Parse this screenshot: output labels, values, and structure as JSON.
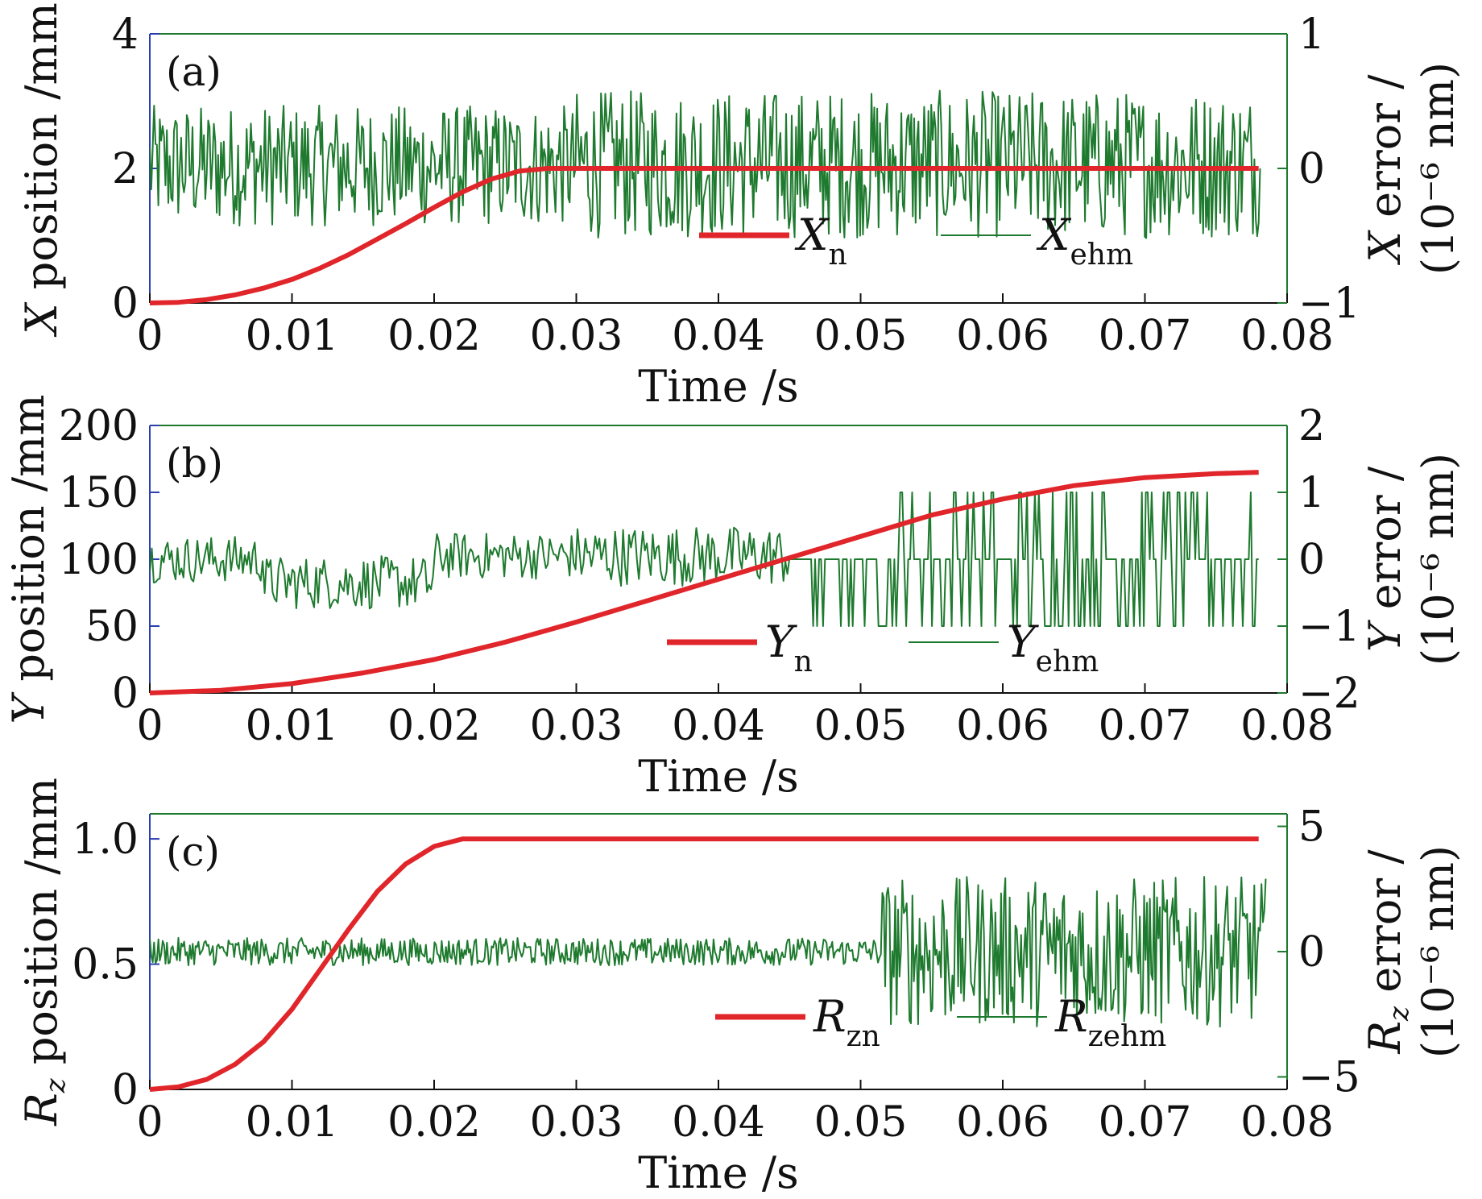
{
  "chart_data": [
    {
      "type": "line",
      "panel_label": "(a)",
      "xlabel": "Time /s",
      "xlim": [
        0,
        0.08
      ],
      "xticks": [
        "0",
        "0.01",
        "0.02",
        "0.03",
        "0.04",
        "0.05",
        "0.06",
        "0.07",
        "0.08"
      ],
      "left_axis": {
        "label_var": "X",
        "label_rest": " position /mm",
        "ylim": [
          0,
          4
        ],
        "ticks": [
          {
            "v": 0,
            "t": "0"
          },
          {
            "v": 2,
            "t": "2"
          },
          {
            "v": 4,
            "t": "4"
          }
        ]
      },
      "right_axis": {
        "label_var": "X",
        "label_rest": " error /",
        "label_line2": "(10⁻⁶ nm)",
        "ylim": [
          -1,
          1
        ],
        "ticks": [
          {
            "v": -1,
            "t": "−1"
          },
          {
            "v": 0,
            "t": "0"
          },
          {
            "v": 1,
            "t": "1"
          }
        ]
      },
      "series": [
        {
          "name": "X_n",
          "legend_main": "X",
          "legend_sub": "n",
          "axis": "left",
          "color": "#e0262b",
          "x": [
            0,
            0.002,
            0.004,
            0.006,
            0.008,
            0.01,
            0.012,
            0.014,
            0.016,
            0.018,
            0.02,
            0.022,
            0.024,
            0.026,
            0.028,
            0.03,
            0.04,
            0.05,
            0.06,
            0.07,
            0.078
          ],
          "y": [
            0,
            0.01,
            0.05,
            0.12,
            0.22,
            0.35,
            0.52,
            0.72,
            0.95,
            1.18,
            1.42,
            1.65,
            1.84,
            1.96,
            2.0,
            2.0,
            2.0,
            2.0,
            2.0,
            2.0,
            2.0
          ]
        },
        {
          "name": "X_ehm",
          "legend_main": "X",
          "legend_sub": "ehm",
          "axis": "right",
          "color": "#1e7a2e",
          "noise": {
            "x_start": 0,
            "x_end": 0.0781,
            "n": 780,
            "segments": [
              {
                "from": 0,
                "to": 0.03,
                "center": 0.02,
                "amp": 0.45
              },
              {
                "from": 0.03,
                "to": 0.0781,
                "center": 0.03,
                "amp": 0.55
              }
            ]
          }
        }
      ]
    },
    {
      "type": "line",
      "panel_label": "(b)",
      "xlabel": "Time /s",
      "xlim": [
        0,
        0.08
      ],
      "xticks": [
        "0",
        "0.01",
        "0.02",
        "0.03",
        "0.04",
        "0.05",
        "0.06",
        "0.07",
        "0.08"
      ],
      "left_axis": {
        "label_var": "Y",
        "label_rest": " position /mm",
        "ylim": [
          0,
          200
        ],
        "ticks": [
          {
            "v": 0,
            "t": "0"
          },
          {
            "v": 50,
            "t": "50"
          },
          {
            "v": 100,
            "t": "100"
          },
          {
            "v": 150,
            "t": "150"
          },
          {
            "v": 200,
            "t": "200"
          }
        ]
      },
      "right_axis": {
        "label_var": "Y",
        "label_rest": " error /",
        "label_line2": "(10⁻⁶ nm)",
        "ylim": [
          -2,
          2
        ],
        "ticks": [
          {
            "v": -2,
            "t": "−2"
          },
          {
            "v": -1,
            "t": "−1"
          },
          {
            "v": 0,
            "t": "0"
          },
          {
            "v": 1,
            "t": "1"
          },
          {
            "v": 2,
            "t": "2"
          }
        ]
      },
      "series": [
        {
          "name": "Y_n",
          "legend_main": "Y",
          "legend_sub": "n",
          "axis": "left",
          "color": "#e0262b",
          "x": [
            0,
            0.005,
            0.01,
            0.015,
            0.02,
            0.025,
            0.03,
            0.035,
            0.04,
            0.045,
            0.05,
            0.055,
            0.06,
            0.065,
            0.07,
            0.075,
            0.078
          ],
          "y": [
            0,
            2,
            7,
            15,
            25,
            38,
            53,
            69,
            85,
            101,
            117,
            133,
            145,
            155,
            161,
            164,
            165
          ]
        },
        {
          "name": "Y_ehm",
          "legend_main": "Y",
          "legend_sub": "ehm",
          "axis": "right",
          "color": "#1e7a2e",
          "noise": {
            "x_start": 0,
            "x_end": 0.078,
            "n": 560,
            "segments": [
              {
                "from": 0,
                "to": 0.008,
                "center": 0.0,
                "amp": 0.35
              },
              {
                "from": 0.008,
                "to": 0.02,
                "center": -0.35,
                "amp": 0.4
              },
              {
                "from": 0.02,
                "to": 0.03,
                "center": 0.05,
                "amp": 0.35
              },
              {
                "from": 0.03,
                "to": 0.045,
                "center": 0.05,
                "amp": 0.45
              },
              {
                "from": 0.045,
                "to": 0.0515,
                "center": 0,
                "amp": 0,
                "spikes": [
                  -1,
                  0
                ]
              },
              {
                "from": 0.0515,
                "to": 0.078,
                "center": 0,
                "amp": 0,
                "spikes": [
                  -1,
                  1
                ]
              }
            ]
          }
        }
      ]
    },
    {
      "type": "line",
      "panel_label": "(c)",
      "xlabel": "Time /s",
      "xlim": [
        0,
        0.08
      ],
      "xticks": [
        "0",
        "0.01",
        "0.02",
        "0.03",
        "0.04",
        "0.05",
        "0.06",
        "0.07",
        "0.08"
      ],
      "left_axis": {
        "label_var": "R",
        "label_varsub": "z",
        "label_rest": " position /mm",
        "ylim": [
          0,
          1.1
        ],
        "ticks": [
          {
            "v": 0,
            "t": "0"
          },
          {
            "v": 0.5,
            "t": "0.5"
          },
          {
            "v": 1.0,
            "t": "1.0"
          }
        ]
      },
      "right_axis": {
        "label_var": "R",
        "label_varsub": "z",
        "label_rest": " error /",
        "label_line2": "(10⁻⁶ nm)",
        "ylim": [
          -5.5,
          5.5
        ],
        "ticks": [
          {
            "v": -5,
            "t": "−5"
          },
          {
            "v": 0,
            "t": "0"
          },
          {
            "v": 5,
            "t": "5"
          }
        ]
      },
      "series": [
        {
          "name": "R_zn",
          "legend_main": "R",
          "legend_sub": "zn",
          "axis": "left",
          "color": "#e0262b",
          "x": [
            0,
            0.002,
            0.004,
            0.006,
            0.008,
            0.01,
            0.012,
            0.014,
            0.016,
            0.018,
            0.02,
            0.022,
            0.024,
            0.03,
            0.04,
            0.05,
            0.06,
            0.07,
            0.078
          ],
          "y": [
            0,
            0.01,
            0.04,
            0.1,
            0.19,
            0.32,
            0.48,
            0.64,
            0.79,
            0.9,
            0.97,
            1.0,
            1.0,
            1.0,
            1.0,
            1.0,
            1.0,
            1.0,
            1.0
          ]
        },
        {
          "name": "R_zehm",
          "legend_main": "R",
          "legend_sub": "zehm",
          "axis": "right",
          "color": "#1e7a2e",
          "noise": {
            "x_start": 0,
            "x_end": 0.0785,
            "n": 780,
            "segments": [
              {
                "from": 0,
                "to": 0.0515,
                "center": 0.0,
                "amp": 0.55
              },
              {
                "from": 0.0515,
                "to": 0.0785,
                "center": 0.0,
                "amp": 3.0
              }
            ]
          }
        }
      ]
    }
  ]
}
